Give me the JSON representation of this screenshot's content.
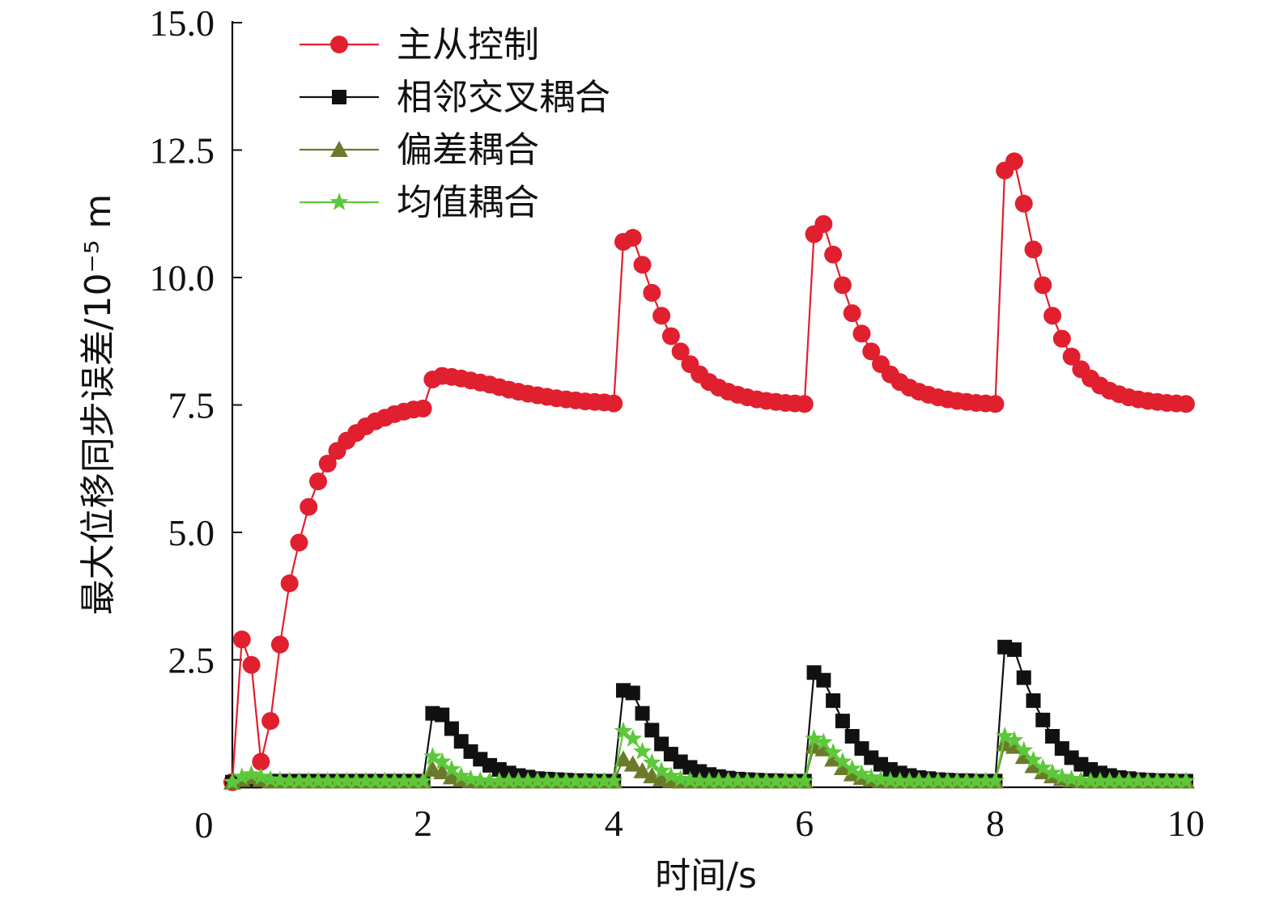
{
  "chart_data": {
    "type": "line",
    "title": "",
    "xlabel": "时间/s",
    "ylabel": "最大位移同步误差/10⁻⁵ m",
    "xlim": [
      0,
      10
    ],
    "ylim": [
      0,
      15
    ],
    "xticks": [
      0,
      2,
      4,
      6,
      8,
      10
    ],
    "yticks": [
      2.5,
      5.0,
      7.5,
      10.0,
      12.5,
      15.0
    ],
    "origin_label": "0",
    "grid": false,
    "legend_position": "top-left",
    "series": [
      {
        "name": "主从控制",
        "color": "#e0202e",
        "marker": "circle",
        "x": [
          0,
          0.1,
          0.2,
          0.3,
          0.4,
          0.5,
          0.6,
          0.7,
          0.8,
          0.9,
          1.0,
          1.1,
          1.2,
          1.3,
          1.4,
          1.5,
          1.6,
          1.7,
          1.8,
          1.9,
          2.0,
          2.1,
          2.2,
          2.3,
          2.4,
          2.5,
          2.6,
          2.7,
          2.8,
          2.9,
          3.0,
          3.1,
          3.2,
          3.3,
          3.4,
          3.5,
          3.6,
          3.7,
          3.8,
          3.9,
          4.0,
          4.1,
          4.2,
          4.3,
          4.4,
          4.5,
          4.6,
          4.7,
          4.8,
          4.9,
          5.0,
          5.1,
          5.2,
          5.3,
          5.4,
          5.5,
          5.6,
          5.7,
          5.8,
          5.9,
          6.0,
          6.1,
          6.2,
          6.3,
          6.4,
          6.5,
          6.6,
          6.7,
          6.8,
          6.9,
          7.0,
          7.1,
          7.2,
          7.3,
          7.4,
          7.5,
          7.6,
          7.7,
          7.8,
          7.9,
          8.0,
          8.1,
          8.2,
          8.3,
          8.4,
          8.5,
          8.6,
          8.7,
          8.8,
          8.9,
          9.0,
          9.1,
          9.2,
          9.3,
          9.4,
          9.5,
          9.6,
          9.7,
          9.8,
          9.9,
          10.0
        ],
        "y": [
          0.1,
          2.9,
          2.4,
          0.5,
          1.3,
          2.8,
          4.0,
          4.8,
          5.5,
          6.0,
          6.35,
          6.6,
          6.8,
          6.95,
          7.08,
          7.18,
          7.25,
          7.32,
          7.37,
          7.41,
          7.43,
          8.0,
          8.07,
          8.05,
          8.02,
          7.98,
          7.94,
          7.9,
          7.85,
          7.8,
          7.76,
          7.72,
          7.69,
          7.66,
          7.63,
          7.61,
          7.59,
          7.57,
          7.56,
          7.55,
          7.53,
          10.7,
          10.78,
          10.25,
          9.7,
          9.25,
          8.85,
          8.55,
          8.3,
          8.1,
          7.95,
          7.84,
          7.76,
          7.7,
          7.65,
          7.61,
          7.58,
          7.56,
          7.54,
          7.53,
          7.52,
          10.85,
          11.05,
          10.45,
          9.85,
          9.3,
          8.9,
          8.55,
          8.3,
          8.1,
          7.95,
          7.84,
          7.76,
          7.7,
          7.65,
          7.61,
          7.58,
          7.56,
          7.54,
          7.53,
          7.52,
          12.1,
          12.28,
          11.45,
          10.55,
          9.85,
          9.25,
          8.8,
          8.45,
          8.2,
          8.02,
          7.88,
          7.78,
          7.71,
          7.65,
          7.61,
          7.58,
          7.56,
          7.54,
          7.53,
          7.52
        ]
      },
      {
        "name": "相邻交叉耦合",
        "color": "#111111",
        "marker": "square",
        "x": [
          0,
          0.1,
          0.2,
          0.3,
          0.4,
          0.5,
          0.6,
          0.7,
          0.8,
          0.9,
          1.0,
          1.1,
          1.2,
          1.3,
          1.4,
          1.5,
          1.6,
          1.7,
          1.8,
          1.9,
          2.0,
          2.1,
          2.2,
          2.3,
          2.4,
          2.5,
          2.6,
          2.7,
          2.8,
          2.9,
          3.0,
          3.1,
          3.2,
          3.3,
          3.4,
          3.5,
          3.6,
          3.7,
          3.8,
          3.9,
          4.0,
          4.1,
          4.2,
          4.3,
          4.4,
          4.5,
          4.6,
          4.7,
          4.8,
          4.9,
          5.0,
          5.1,
          5.2,
          5.3,
          5.4,
          5.5,
          5.6,
          5.7,
          5.8,
          5.9,
          6.0,
          6.1,
          6.2,
          6.3,
          6.4,
          6.5,
          6.6,
          6.7,
          6.8,
          6.9,
          7.0,
          7.1,
          7.2,
          7.3,
          7.4,
          7.5,
          7.6,
          7.7,
          7.8,
          7.9,
          8.0,
          8.1,
          8.2,
          8.3,
          8.4,
          8.5,
          8.6,
          8.7,
          8.8,
          8.9,
          9.0,
          9.1,
          9.2,
          9.3,
          9.4,
          9.5,
          9.6,
          9.7,
          9.8,
          9.9,
          10.0
        ],
        "y": [
          0.1,
          0.12,
          0.12,
          0.12,
          0.12,
          0.12,
          0.12,
          0.12,
          0.12,
          0.12,
          0.12,
          0.12,
          0.12,
          0.12,
          0.12,
          0.12,
          0.12,
          0.12,
          0.12,
          0.12,
          0.12,
          1.45,
          1.42,
          1.15,
          0.9,
          0.7,
          0.55,
          0.43,
          0.35,
          0.28,
          0.23,
          0.2,
          0.17,
          0.16,
          0.15,
          0.14,
          0.13,
          0.13,
          0.12,
          0.12,
          0.12,
          1.9,
          1.85,
          1.45,
          1.12,
          0.85,
          0.65,
          0.5,
          0.39,
          0.31,
          0.25,
          0.21,
          0.18,
          0.16,
          0.15,
          0.14,
          0.13,
          0.13,
          0.12,
          0.12,
          0.12,
          2.25,
          2.1,
          1.7,
          1.3,
          1.0,
          0.76,
          0.58,
          0.45,
          0.35,
          0.28,
          0.23,
          0.19,
          0.17,
          0.15,
          0.14,
          0.13,
          0.13,
          0.12,
          0.12,
          0.12,
          2.75,
          2.7,
          2.15,
          1.7,
          1.32,
          1.0,
          0.76,
          0.58,
          0.45,
          0.35,
          0.28,
          0.23,
          0.19,
          0.17,
          0.15,
          0.14,
          0.13,
          0.13,
          0.12,
          0.12
        ]
      },
      {
        "name": "偏差耦合",
        "color": "#6b7a2a",
        "marker": "triangle",
        "x": [
          0,
          0.1,
          0.2,
          0.3,
          0.4,
          0.5,
          0.6,
          0.7,
          0.8,
          0.9,
          1.0,
          1.1,
          1.2,
          1.3,
          1.4,
          1.5,
          1.6,
          1.7,
          1.8,
          1.9,
          2.0,
          2.1,
          2.2,
          2.3,
          2.4,
          2.5,
          2.6,
          2.7,
          2.8,
          2.9,
          3.0,
          3.1,
          3.2,
          3.3,
          3.4,
          3.5,
          3.6,
          3.7,
          3.8,
          3.9,
          4.0,
          4.1,
          4.2,
          4.3,
          4.4,
          4.5,
          4.6,
          4.7,
          4.8,
          4.9,
          5.0,
          5.1,
          5.2,
          5.3,
          5.4,
          5.5,
          5.6,
          5.7,
          5.8,
          5.9,
          6.0,
          6.1,
          6.2,
          6.3,
          6.4,
          6.5,
          6.6,
          6.7,
          6.8,
          6.9,
          7.0,
          7.1,
          7.2,
          7.3,
          7.4,
          7.5,
          7.6,
          7.7,
          7.8,
          7.9,
          8.0,
          8.1,
          8.2,
          8.3,
          8.4,
          8.5,
          8.6,
          8.7,
          8.8,
          8.9,
          9.0,
          9.1,
          9.2,
          9.3,
          9.4,
          9.5,
          9.6,
          9.7,
          9.8,
          9.9,
          10.0
        ],
        "y": [
          0.1,
          0.15,
          0.2,
          0.15,
          0.12,
          0.12,
          0.12,
          0.12,
          0.12,
          0.12,
          0.12,
          0.12,
          0.12,
          0.12,
          0.12,
          0.12,
          0.12,
          0.12,
          0.12,
          0.12,
          0.12,
          0.35,
          0.3,
          0.2,
          0.15,
          0.13,
          0.12,
          0.12,
          0.12,
          0.12,
          0.12,
          0.12,
          0.12,
          0.12,
          0.12,
          0.12,
          0.12,
          0.12,
          0.12,
          0.12,
          0.12,
          0.55,
          0.45,
          0.32,
          0.22,
          0.16,
          0.13,
          0.12,
          0.12,
          0.12,
          0.12,
          0.12,
          0.12,
          0.12,
          0.12,
          0.12,
          0.12,
          0.12,
          0.12,
          0.12,
          0.12,
          0.8,
          0.75,
          0.55,
          0.38,
          0.26,
          0.19,
          0.15,
          0.13,
          0.12,
          0.12,
          0.12,
          0.12,
          0.12,
          0.12,
          0.12,
          0.12,
          0.12,
          0.12,
          0.12,
          0.12,
          0.85,
          0.8,
          0.6,
          0.42,
          0.3,
          0.22,
          0.17,
          0.14,
          0.13,
          0.12,
          0.12,
          0.12,
          0.12,
          0.12,
          0.12,
          0.12,
          0.12,
          0.12,
          0.12,
          0.12
        ]
      },
      {
        "name": "均值耦合",
        "color": "#5cc83a",
        "marker": "star",
        "x": [
          0,
          0.1,
          0.2,
          0.3,
          0.4,
          0.5,
          0.6,
          0.7,
          0.8,
          0.9,
          1.0,
          1.1,
          1.2,
          1.3,
          1.4,
          1.5,
          1.6,
          1.7,
          1.8,
          1.9,
          2.0,
          2.1,
          2.2,
          2.3,
          2.4,
          2.5,
          2.6,
          2.7,
          2.8,
          2.9,
          3.0,
          3.1,
          3.2,
          3.3,
          3.4,
          3.5,
          3.6,
          3.7,
          3.8,
          3.9,
          4.0,
          4.1,
          4.2,
          4.3,
          4.4,
          4.5,
          4.6,
          4.7,
          4.8,
          4.9,
          5.0,
          5.1,
          5.2,
          5.3,
          5.4,
          5.5,
          5.6,
          5.7,
          5.8,
          5.9,
          6.0,
          6.1,
          6.2,
          6.3,
          6.4,
          6.5,
          6.6,
          6.7,
          6.8,
          6.9,
          7.0,
          7.1,
          7.2,
          7.3,
          7.4,
          7.5,
          7.6,
          7.7,
          7.8,
          7.9,
          8.0,
          8.1,
          8.2,
          8.3,
          8.4,
          8.5,
          8.6,
          8.7,
          8.8,
          8.9,
          9.0,
          9.1,
          9.2,
          9.3,
          9.4,
          9.5,
          9.6,
          9.7,
          9.8,
          9.9,
          10.0
        ],
        "y": [
          0.1,
          0.2,
          0.25,
          0.2,
          0.15,
          0.13,
          0.12,
          0.12,
          0.12,
          0.12,
          0.12,
          0.12,
          0.12,
          0.12,
          0.12,
          0.12,
          0.12,
          0.12,
          0.12,
          0.12,
          0.12,
          0.6,
          0.5,
          0.35,
          0.22,
          0.16,
          0.13,
          0.12,
          0.12,
          0.12,
          0.12,
          0.12,
          0.12,
          0.12,
          0.12,
          0.12,
          0.12,
          0.12,
          0.12,
          0.12,
          0.12,
          1.1,
          0.95,
          0.7,
          0.48,
          0.32,
          0.22,
          0.16,
          0.13,
          0.12,
          0.12,
          0.12,
          0.12,
          0.12,
          0.12,
          0.12,
          0.12,
          0.12,
          0.12,
          0.12,
          0.12,
          0.95,
          0.88,
          0.68,
          0.5,
          0.36,
          0.26,
          0.19,
          0.15,
          0.13,
          0.12,
          0.12,
          0.12,
          0.12,
          0.12,
          0.12,
          0.12,
          0.12,
          0.12,
          0.12,
          0.12,
          1.0,
          0.92,
          0.72,
          0.53,
          0.38,
          0.28,
          0.2,
          0.16,
          0.13,
          0.12,
          0.12,
          0.12,
          0.12,
          0.12,
          0.12,
          0.12,
          0.12,
          0.12,
          0.12,
          0.12
        ]
      }
    ]
  }
}
